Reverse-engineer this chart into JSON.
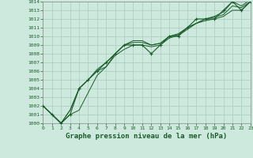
{
  "title": "Graphe pression niveau de la mer (hPa)",
  "background_color": "#cde8dc",
  "grid_color": "#a8ccbc",
  "line_color": "#1a5c2a",
  "x_min": 0,
  "x_max": 23,
  "y_min": 1000,
  "y_max": 1014,
  "series": [
    [
      1002,
      1001,
      1000,
      1001,
      1004,
      1005,
      1006,
      1007,
      1008,
      1009,
      1009,
      1009,
      1008,
      1009,
      1010,
      1010,
      1011,
      1012,
      1012,
      1012,
      1013,
      1014,
      1013,
      1014
    ],
    [
      1002,
      1001,
      1000,
      1001.5,
      1004,
      1005,
      1006,
      1006.5,
      1008,
      1009,
      1009.3,
      1009.3,
      1009,
      1009.2,
      1010,
      1010.2,
      1011,
      1011.5,
      1012,
      1012.2,
      1012.5,
      1013.5,
      1013.3,
      1014
    ],
    [
      1002,
      1001,
      1000,
      1001.5,
      1004,
      1005,
      1006.2,
      1007,
      1008,
      1009,
      1009.5,
      1009.5,
      1009,
      1009.2,
      1010,
      1010.3,
      1011,
      1011.5,
      1012,
      1012.3,
      1012.8,
      1014,
      1013.5,
      1014.2
    ],
    [
      1002,
      1001,
      1000,
      1001,
      1001.5,
      1003.5,
      1005.5,
      1006.5,
      1007.8,
      1008.5,
      1009,
      1009,
      1008.8,
      1009,
      1009.8,
      1010.1,
      1010.8,
      1011.5,
      1011.8,
      1012,
      1012.3,
      1013,
      1013,
      1014
    ]
  ],
  "marker_series": 0,
  "yticks": [
    1000,
    1001,
    1002,
    1003,
    1004,
    1005,
    1006,
    1007,
    1008,
    1009,
    1010,
    1011,
    1012,
    1013,
    1014
  ],
  "xticks": [
    0,
    1,
    2,
    3,
    4,
    5,
    6,
    7,
    8,
    9,
    10,
    11,
    12,
    13,
    14,
    15,
    16,
    17,
    18,
    19,
    20,
    21,
    22,
    23
  ],
  "ylabel_fontsize": 4.5,
  "xlabel_fontsize": 4.5,
  "title_fontsize": 6.5
}
